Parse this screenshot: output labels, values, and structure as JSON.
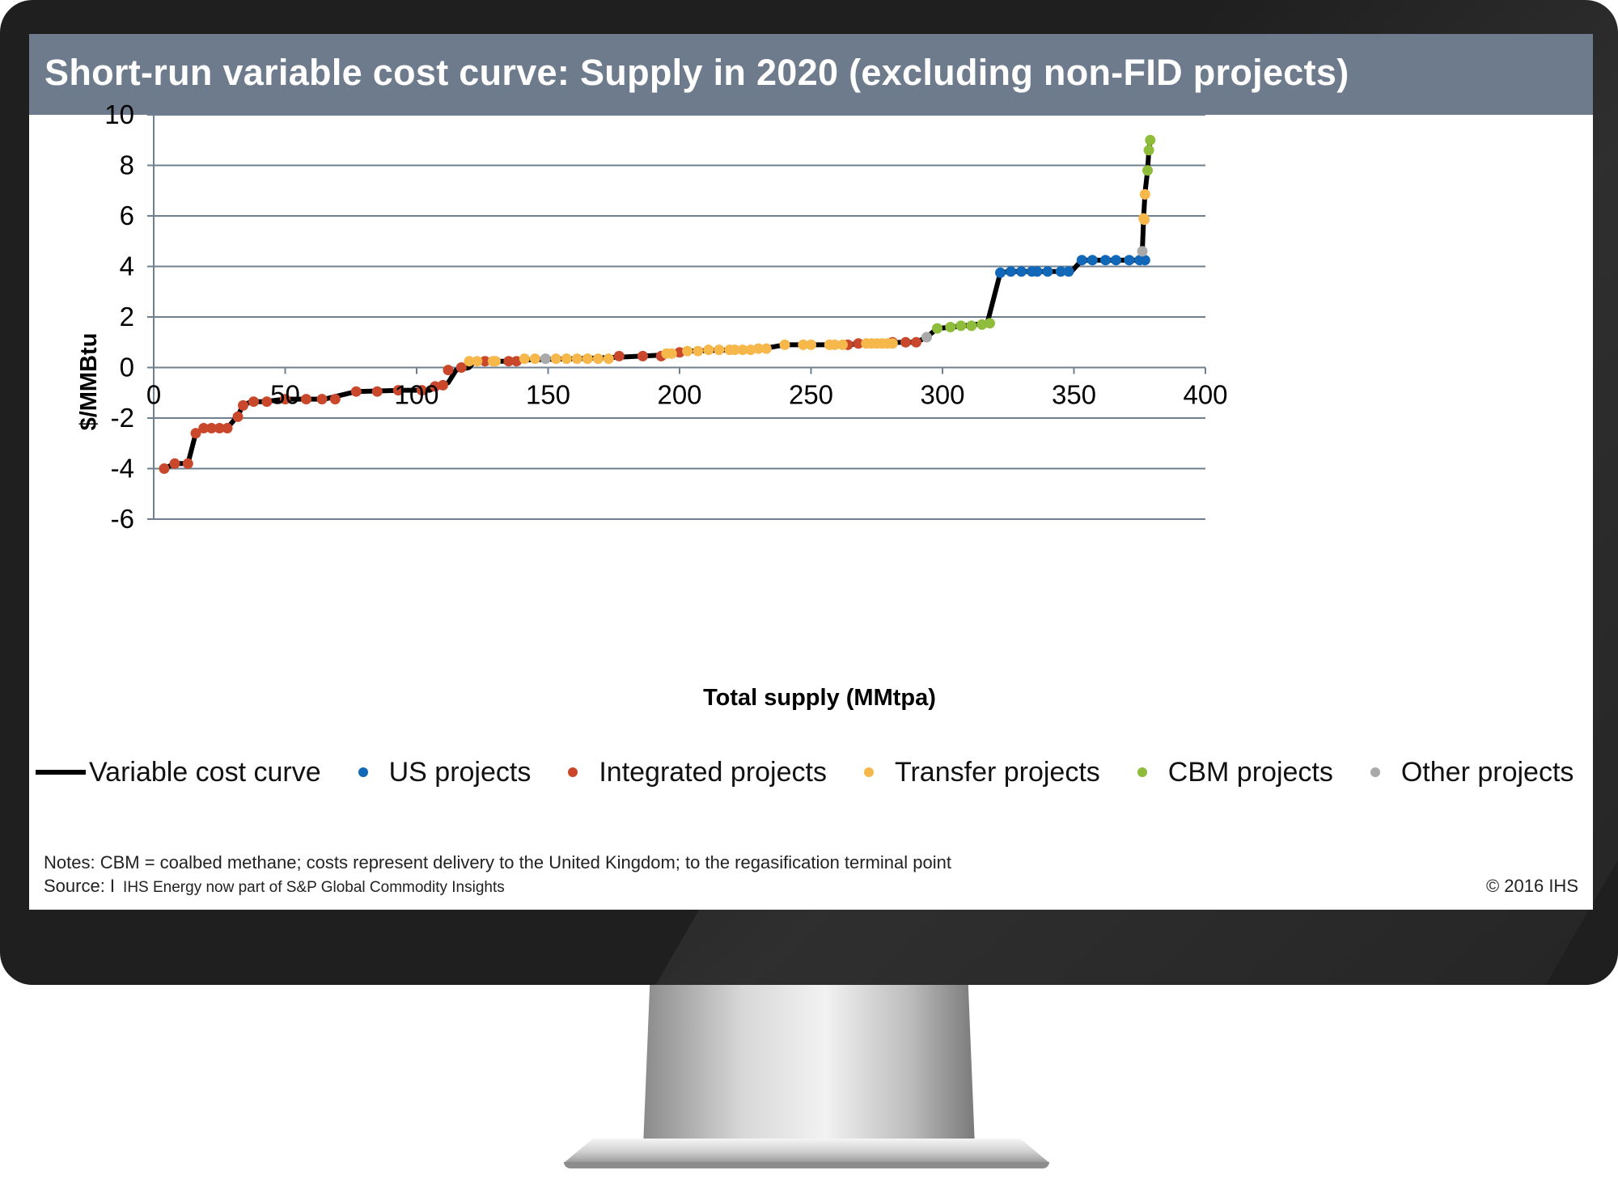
{
  "chart_data": {
    "type": "scatter",
    "title": "Short-run variable cost curve: Supply in 2020 (excluding non-FID projects)",
    "xlabel": "Total supply (MMtpa)",
    "ylabel": "$/MMBtu",
    "xlim": [
      0,
      400
    ],
    "ylim": [
      -6,
      10
    ],
    "x_ticks": [
      "0",
      "50",
      "100",
      "150",
      "200",
      "250",
      "300",
      "350",
      "400"
    ],
    "y_ticks": [
      "10",
      "8",
      "6",
      "4",
      "2",
      "0",
      "-2",
      "-4",
      "-6"
    ],
    "grid": "horizontal",
    "legend_position": "bottom",
    "curve_name": "Variable cost curve",
    "curve_color": "#000000",
    "curve": [
      [
        4,
        -4.0
      ],
      [
        8,
        -3.8
      ],
      [
        13,
        -3.8
      ],
      [
        16,
        -2.6
      ],
      [
        19,
        -2.4
      ],
      [
        28,
        -2.4
      ],
      [
        32,
        -1.9
      ],
      [
        34,
        -1.5
      ],
      [
        37,
        -1.35
      ],
      [
        42,
        -1.35
      ],
      [
        50,
        -1.25
      ],
      [
        65,
        -1.25
      ],
      [
        77,
        -0.95
      ],
      [
        95,
        -0.9
      ],
      [
        105,
        -0.9
      ],
      [
        108,
        -0.75
      ],
      [
        112,
        -0.6
      ],
      [
        115,
        -0.1
      ],
      [
        120,
        0.0
      ],
      [
        122,
        0.25
      ],
      [
        126,
        0.25
      ],
      [
        130,
        0.25
      ],
      [
        136,
        0.25
      ],
      [
        142,
        0.3
      ],
      [
        160,
        0.35
      ],
      [
        175,
        0.4
      ],
      [
        195,
        0.5
      ],
      [
        202,
        0.65
      ],
      [
        222,
        0.7
      ],
      [
        232,
        0.75
      ],
      [
        240,
        0.9
      ],
      [
        262,
        0.9
      ],
      [
        272,
        0.95
      ],
      [
        285,
        1.0
      ],
      [
        290,
        1.0
      ],
      [
        294,
        1.2
      ],
      [
        298,
        1.55
      ],
      [
        304,
        1.6
      ],
      [
        312,
        1.7
      ],
      [
        317,
        1.75
      ],
      [
        322,
        3.75
      ],
      [
        325,
        3.8
      ],
      [
        349,
        3.8
      ],
      [
        353,
        4.25
      ],
      [
        375,
        4.25
      ],
      [
        376,
        4.6
      ],
      [
        376.5,
        5.9
      ],
      [
        377,
        6.9
      ],
      [
        378,
        7.8
      ],
      [
        378.5,
        8.6
      ],
      [
        379,
        9.0
      ]
    ],
    "series": [
      {
        "name": "US projects",
        "color": "#1168b8",
        "points": [
          [
            322,
            3.75
          ],
          [
            326,
            3.8
          ],
          [
            330,
            3.8
          ],
          [
            334,
            3.8
          ],
          [
            336,
            3.8
          ],
          [
            340,
            3.8
          ],
          [
            345,
            3.8
          ],
          [
            348,
            3.8
          ],
          [
            353,
            4.25
          ],
          [
            357,
            4.25
          ],
          [
            362,
            4.25
          ],
          [
            366,
            4.25
          ],
          [
            371,
            4.25
          ],
          [
            375,
            4.25
          ],
          [
            377,
            4.25
          ]
        ]
      },
      {
        "name": "Integrated projects",
        "color": "#c9472b",
        "points": [
          [
            4,
            -4.0
          ],
          [
            8,
            -3.8
          ],
          [
            13,
            -3.8
          ],
          [
            16,
            -2.6
          ],
          [
            19,
            -2.4
          ],
          [
            22,
            -2.4
          ],
          [
            25,
            -2.4
          ],
          [
            28,
            -2.4
          ],
          [
            32,
            -1.95
          ],
          [
            34,
            -1.5
          ],
          [
            38,
            -1.35
          ],
          [
            43,
            -1.35
          ],
          [
            50,
            -1.25
          ],
          [
            58,
            -1.25
          ],
          [
            64,
            -1.25
          ],
          [
            69,
            -1.25
          ],
          [
            77,
            -0.95
          ],
          [
            85,
            -0.95
          ],
          [
            93,
            -0.9
          ],
          [
            102,
            -0.9
          ],
          [
            107,
            -0.75
          ],
          [
            110,
            -0.7
          ],
          [
            112,
            -0.1
          ],
          [
            117,
            0.0
          ],
          [
            126,
            0.25
          ],
          [
            135,
            0.25
          ],
          [
            138,
            0.25
          ],
          [
            177,
            0.45
          ],
          [
            186,
            0.45
          ],
          [
            193,
            0.45
          ],
          [
            200,
            0.6
          ],
          [
            264,
            0.9
          ],
          [
            268,
            0.95
          ],
          [
            281,
            1.0
          ],
          [
            286,
            1.0
          ],
          [
            290,
            1.0
          ]
        ]
      },
      {
        "name": "Transfer projects",
        "color": "#f7b84b",
        "points": [
          [
            120,
            0.25
          ],
          [
            123,
            0.25
          ],
          [
            129,
            0.25
          ],
          [
            130,
            0.25
          ],
          [
            141,
            0.35
          ],
          [
            145,
            0.35
          ],
          [
            153,
            0.35
          ],
          [
            157,
            0.35
          ],
          [
            161,
            0.35
          ],
          [
            165,
            0.35
          ],
          [
            169,
            0.35
          ],
          [
            173,
            0.35
          ],
          [
            195,
            0.55
          ],
          [
            197,
            0.55
          ],
          [
            203,
            0.65
          ],
          [
            207,
            0.65
          ],
          [
            211,
            0.7
          ],
          [
            215,
            0.7
          ],
          [
            219,
            0.7
          ],
          [
            221,
            0.7
          ],
          [
            224,
            0.7
          ],
          [
            227,
            0.7
          ],
          [
            230,
            0.75
          ],
          [
            233,
            0.75
          ],
          [
            240,
            0.9
          ],
          [
            247,
            0.9
          ],
          [
            250,
            0.9
          ],
          [
            257,
            0.9
          ],
          [
            259,
            0.9
          ],
          [
            262,
            0.9
          ],
          [
            271,
            0.95
          ],
          [
            273,
            0.95
          ],
          [
            275,
            0.95
          ],
          [
            277,
            0.95
          ],
          [
            279,
            0.95
          ],
          [
            281,
            0.95
          ],
          [
            376.5,
            5.9
          ],
          [
            376.8,
            5.85
          ],
          [
            377,
            6.85
          ]
        ]
      },
      {
        "name": "CBM projects",
        "color": "#8fbc3a",
        "points": [
          [
            298,
            1.55
          ],
          [
            303,
            1.6
          ],
          [
            307,
            1.65
          ],
          [
            311,
            1.65
          ],
          [
            315,
            1.7
          ],
          [
            318,
            1.75
          ],
          [
            378,
            7.8
          ],
          [
            378.5,
            8.6
          ],
          [
            379,
            9.0
          ]
        ]
      },
      {
        "name": "Other projects",
        "color": "#a9a9a9",
        "points": [
          [
            149,
            0.35
          ],
          [
            294,
            1.2
          ],
          [
            376,
            4.6
          ]
        ]
      }
    ]
  },
  "notes_text": "Notes: CBM = coalbed methane; costs represent delivery to the United Kingdom; to the regasification terminal point",
  "source_label": "Source: I",
  "source_note": "IHS Energy now part of S&P Global Commodity Insights",
  "copyright": "© 2016 IHS"
}
